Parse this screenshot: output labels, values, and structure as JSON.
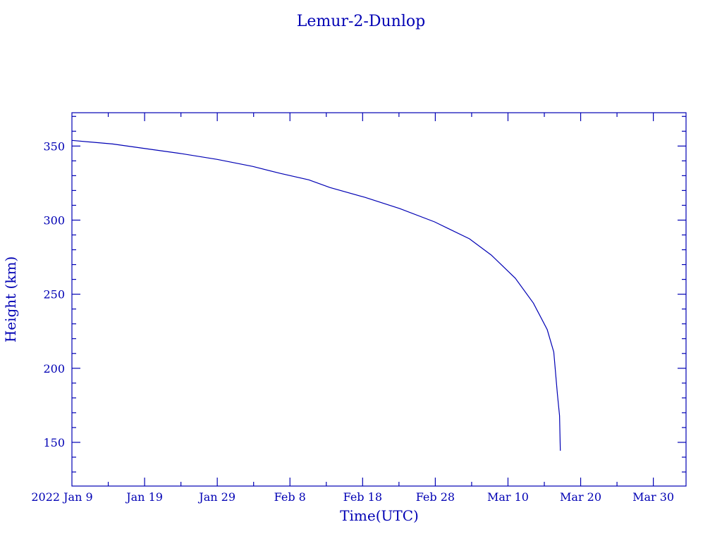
{
  "chart_data": {
    "type": "line",
    "title": "Lemur-2-Dunlop",
    "xlabel": "Time(UTC)",
    "ylabel": "Height (km)",
    "x_unit": "days since 2022 Jan 9",
    "xlim": [
      0,
      84.5
    ],
    "ylim": [
      120.5,
      372.5
    ],
    "x_ticks": [
      {
        "value": 0,
        "label": "2022 Jan  9"
      },
      {
        "value": 10,
        "label": "Jan 19"
      },
      {
        "value": 20,
        "label": "Jan 29"
      },
      {
        "value": 30,
        "label": "Feb  8"
      },
      {
        "value": 40,
        "label": "Feb 18"
      },
      {
        "value": 50,
        "label": "Feb 28"
      },
      {
        "value": 60,
        "label": "Mar 10"
      },
      {
        "value": 70,
        "label": "Mar 20"
      },
      {
        "value": 80,
        "label": "Mar 30"
      }
    ],
    "y_ticks": [
      150,
      200,
      250,
      300,
      350
    ],
    "grid": false,
    "color": "#0000b4",
    "series": [
      {
        "name": "Lemur-2-Dunlop",
        "x": [
          0,
          5.6,
          10.5,
          15.2,
          20,
          24.9,
          28.7,
          32.6,
          35.5,
          40.3,
          45.1,
          49.9,
          54.7,
          57.7,
          61,
          63.5,
          65.4,
          66.3,
          66.8,
          67.1,
          67.2
        ],
        "y": [
          353.8,
          351.4,
          348,
          344.8,
          341,
          336.2,
          331.5,
          327.2,
          322,
          315.4,
          307.8,
          298.8,
          287.4,
          276.4,
          260.8,
          244,
          226.1,
          211,
          182.3,
          168,
          144.3
        ]
      }
    ]
  }
}
